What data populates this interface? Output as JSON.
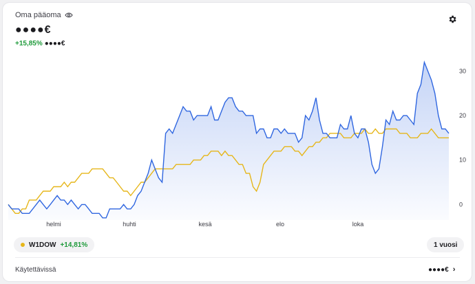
{
  "header": {
    "title": "Oma pääoma",
    "amount": "●●●●€",
    "change_pct": "+15,85%",
    "change_value": "●●●●€"
  },
  "icons": {
    "visibility": "eye-icon",
    "settings": "gear-icon",
    "chevron": "chevron-right-icon"
  },
  "chart_data": {
    "type": "line",
    "x_ticks": [
      "helmi",
      "huhti",
      "kesä",
      "elo",
      "loka"
    ],
    "y_ticks": [
      0,
      10,
      20,
      30
    ],
    "ylim": [
      -3.5,
      33
    ],
    "series": [
      {
        "name": "Oma pääoma",
        "color": "#2f66e0",
        "values": [
          0,
          -1,
          -1,
          -1,
          -2,
          -2,
          -2,
          -1,
          0,
          1,
          0,
          -1,
          0,
          1,
          2,
          1,
          1,
          0,
          1,
          0,
          -1,
          0,
          0,
          -1,
          -2,
          -2,
          -2,
          -3,
          -3,
          -1,
          -1,
          -1,
          -1,
          0,
          -1,
          -1,
          0,
          2,
          3,
          5,
          7,
          10,
          8,
          6,
          5,
          16,
          17,
          16,
          18,
          20,
          22,
          21,
          21,
          19,
          20,
          20,
          20,
          20,
          22,
          19,
          19,
          21,
          23,
          24,
          24,
          22,
          21,
          21,
          20,
          20,
          20,
          16,
          17,
          17,
          15,
          15,
          17,
          17,
          16,
          17,
          16,
          16,
          16,
          14,
          15,
          20,
          19,
          21,
          24,
          19,
          16,
          16,
          15,
          15,
          15,
          18,
          17,
          17,
          20,
          16,
          15,
          17,
          17,
          14,
          9,
          7,
          8,
          13,
          19,
          18,
          21,
          19,
          19,
          20,
          20,
          19,
          18,
          25,
          27,
          32,
          30,
          28,
          25,
          20,
          17,
          17,
          16
        ]
      },
      {
        "name": "W1DOW",
        "color": "#e6b619",
        "values": [
          0,
          -1,
          -2,
          -2,
          -1,
          -1,
          1,
          1,
          1,
          2,
          3,
          3,
          3,
          4,
          4,
          4,
          5,
          4,
          5,
          5,
          6,
          7,
          7,
          7,
          8,
          8,
          8,
          8,
          7,
          6,
          6,
          5,
          4,
          3,
          3,
          2,
          3,
          4,
          5,
          5,
          6,
          7,
          8,
          8,
          8,
          8,
          8,
          8,
          9,
          9,
          9,
          9,
          9,
          10,
          10,
          10,
          11,
          11,
          12,
          12,
          12,
          11,
          12,
          11,
          11,
          10,
          9,
          9,
          7,
          7,
          4,
          3,
          5,
          9,
          10,
          11,
          12,
          12,
          12,
          13,
          13,
          13,
          12,
          12,
          11,
          12,
          13,
          13,
          14,
          14,
          15,
          15,
          16,
          16,
          16,
          16,
          15,
          15,
          15,
          16,
          16,
          16,
          17,
          16,
          16,
          17,
          16,
          16,
          17,
          17,
          17,
          17,
          16,
          16,
          16,
          15,
          15,
          15,
          16,
          16,
          16,
          17,
          16,
          15,
          15,
          15,
          15
        ]
      }
    ]
  },
  "footer": {
    "index_name": "W1DOW",
    "index_pct": "+14,81%",
    "period_label": "1 vuosi",
    "available_label": "Käytettävissä",
    "available_value": "●●●●€"
  }
}
